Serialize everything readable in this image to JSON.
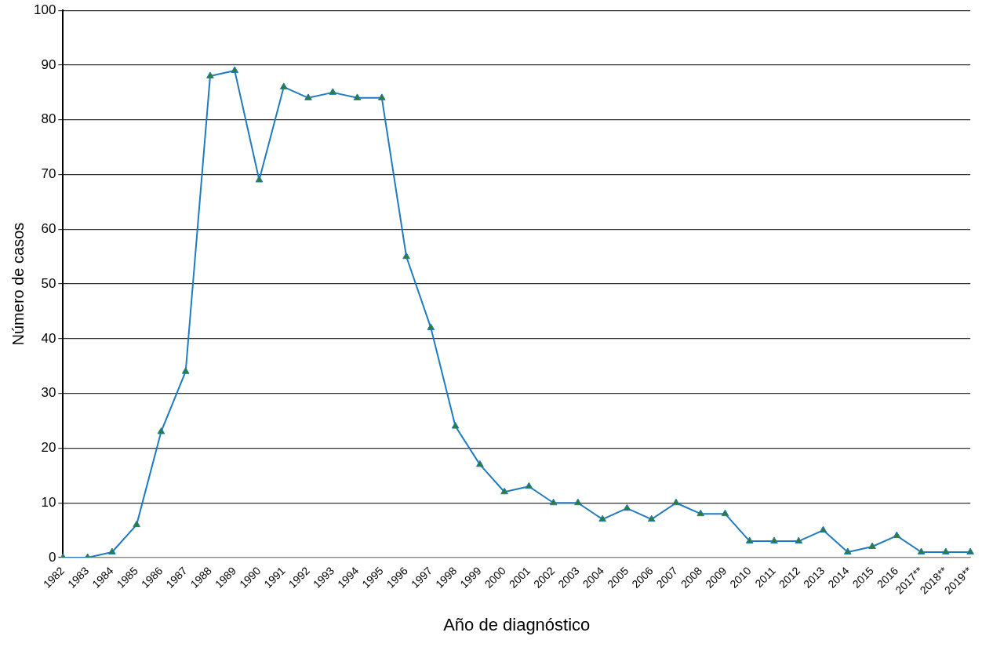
{
  "chart_data": {
    "type": "line",
    "xlabel": "Año de diagnóstico",
    "ylabel": "Número de casos",
    "categories": [
      "1982",
      "1983",
      "1984",
      "1985",
      "1986",
      "1987",
      "1988",
      "1989",
      "1990",
      "1991",
      "1992",
      "1993",
      "1994",
      "1995",
      "1996",
      "1997",
      "1998",
      "1999",
      "2000",
      "2001",
      "2002",
      "2003",
      "2004",
      "2005",
      "2006",
      "2007",
      "2008",
      "2009",
      "2010",
      "2011",
      "2012",
      "2013",
      "2014",
      "2015",
      "2016",
      "2017**",
      "2018**",
      "2019**"
    ],
    "series": [
      {
        "color": "#1f7bc0",
        "values": [
          0,
          0,
          1,
          6,
          23,
          34,
          88,
          89,
          69,
          86,
          84,
          85,
          84,
          84,
          55,
          42,
          24,
          17,
          12,
          13,
          10,
          10,
          7,
          9,
          7,
          10,
          8,
          8,
          3,
          3,
          3,
          5,
          1,
          2,
          4,
          1,
          1,
          1
        ]
      }
    ],
    "ylim": [
      0,
      100
    ],
    "yticks": [
      0,
      10,
      20,
      30,
      40,
      50,
      60,
      70,
      80,
      90,
      100
    ],
    "grid": "y",
    "legend": false,
    "marker": "triangle",
    "line_style": "solid"
  }
}
